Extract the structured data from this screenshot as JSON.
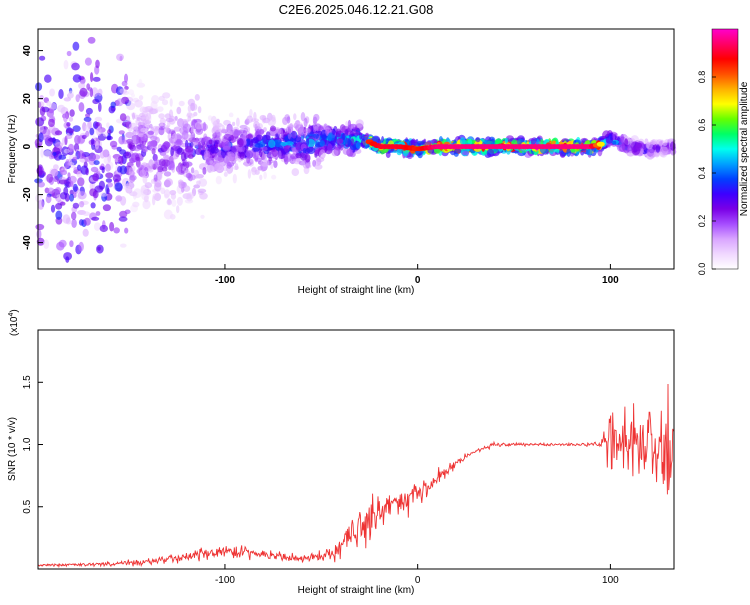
{
  "title": "C2E6.2025.046.12.21.G08",
  "chart_data": [
    {
      "type": "heatmap",
      "xlabel": "Height of straight line (km)",
      "ylabel": "Frequency (Hz)",
      "xlim": [
        -197,
        133
      ],
      "ylim": [
        -51,
        49
      ],
      "xticks": [
        -100,
        0,
        100
      ],
      "yticks": [
        -40,
        -20,
        0,
        20,
        40
      ],
      "colorbar": {
        "label": "Normalized spectral amplitude",
        "lim": [
          0,
          1
        ],
        "ticks": [
          "0.0",
          "0.2",
          "0.4",
          "0.6",
          "0.8"
        ],
        "colors": [
          "#ffffff",
          "#f0d8ff",
          "#d9a5ff",
          "#a64dff",
          "#7a00e6",
          "#3d00ff",
          "#0040ff",
          "#00a0ff",
          "#00ffee",
          "#00ff66",
          "#66ff00",
          "#ffff00",
          "#ffb000",
          "#ff5000",
          "#ff0000",
          "#ff0066",
          "#ff00cc"
        ]
      },
      "ridge": {
        "x": [
          -150,
          -120,
          -100,
          -80,
          -60,
          -40,
          -30,
          -25,
          -20,
          -10,
          0,
          10,
          30,
          60,
          90,
          95,
          100,
          110,
          120,
          133
        ],
        "freq": [
          -3,
          -2,
          0,
          1,
          2,
          3,
          3,
          2,
          0,
          0,
          -1,
          0,
          0,
          0,
          0,
          1,
          3,
          0,
          -1,
          0
        ],
        "amplitude": [
          0.25,
          0.3,
          0.35,
          0.4,
          0.45,
          0.5,
          0.55,
          0.85,
          0.9,
          0.9,
          0.85,
          0.95,
          0.95,
          0.95,
          0.95,
          0.7,
          0.5,
          0.35,
          0.3,
          0.3
        ]
      }
    },
    {
      "type": "line",
      "xlabel": "Height of straight line (km)",
      "ylabel": "SNR (10 * v/v)",
      "y_multiplier_label": "(x10",
      "y_multiplier_exp": "4",
      "y_multiplier_close": ")",
      "xlim": [
        -197,
        133
      ],
      "ylim": [
        0,
        1.92
      ],
      "xticks": [
        -100,
        0,
        100
      ],
      "yticks": [
        0.5,
        1.0,
        1.5
      ],
      "ytick_labels": [
        "0.5",
        "1.0",
        "1.5"
      ],
      "color": "#ee3333",
      "series": [
        {
          "x": [
            -197,
            -160,
            -140,
            -120,
            -100,
            -80,
            -60,
            -45,
            -40,
            -30,
            -20,
            -10,
            0,
            10,
            20,
            30,
            40,
            60,
            80,
            95,
            100,
            110,
            120,
            133
          ],
          "values": [
            0.03,
            0.04,
            0.06,
            0.1,
            0.15,
            0.12,
            0.08,
            0.12,
            0.2,
            0.35,
            0.45,
            0.55,
            0.6,
            0.72,
            0.85,
            0.95,
            1.0,
            1.0,
            1.0,
            1.0,
            1.05,
            1.0,
            0.98,
            0.95
          ],
          "noise": [
            0.01,
            0.02,
            0.04,
            0.06,
            0.07,
            0.05,
            0.04,
            0.06,
            0.12,
            0.2,
            0.2,
            0.15,
            0.12,
            0.08,
            0.04,
            0.02,
            0.02,
            0.015,
            0.015,
            0.02,
            0.3,
            0.45,
            0.5,
            0.55
          ]
        }
      ]
    }
  ]
}
